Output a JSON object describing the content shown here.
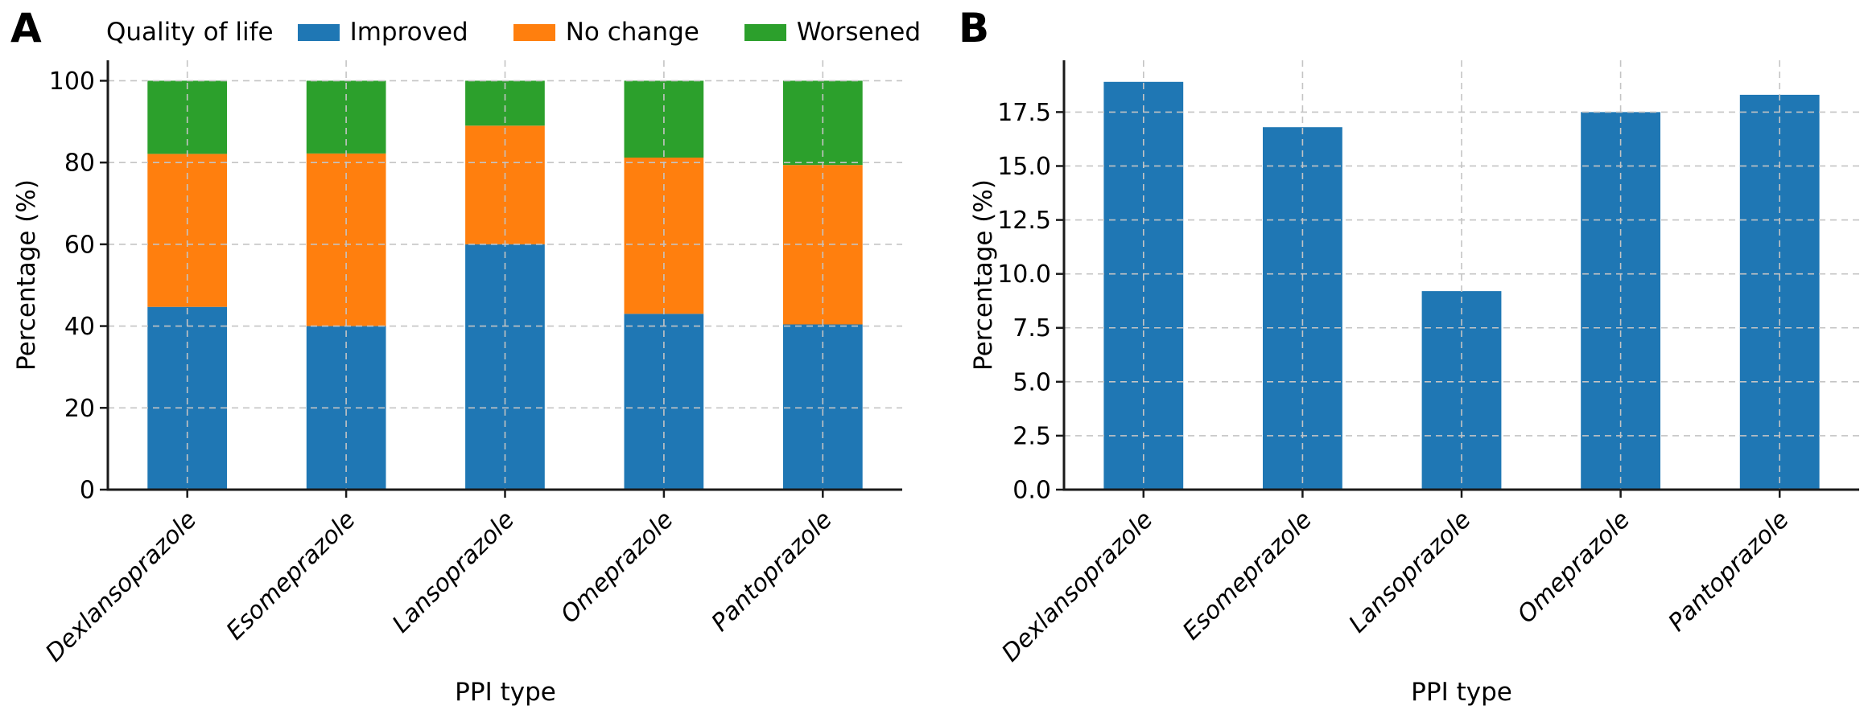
{
  "panels": {
    "a": {
      "letter": "A"
    },
    "b": {
      "letter": "B"
    }
  },
  "legend": {
    "title": "Quality of life",
    "items": [
      {
        "label": "Improved",
        "color": "#1f77b4"
      },
      {
        "label": "No change",
        "color": "#ff7f0e"
      },
      {
        "label": "Worsened",
        "color": "#2ca02c"
      }
    ]
  },
  "chart_data": [
    {
      "panel": "A",
      "type": "bar",
      "stacked": true,
      "title": "Quality of life",
      "categories": [
        "Dexlansoprazole",
        "Esomeprazole",
        "Lansoprazole",
        "Omeprazole",
        "Pantoprazole"
      ],
      "series": [
        {
          "name": "Improved",
          "color": "#1f77b4",
          "values": [
            44.7,
            40.0,
            60.0,
            43.0,
            40.4
          ]
        },
        {
          "name": "No change",
          "color": "#ff7f0e",
          "values": [
            37.4,
            42.2,
            29.0,
            38.2,
            39.0
          ]
        },
        {
          "name": "Worsened",
          "color": "#2ca02c",
          "values": [
            17.9,
            17.8,
            11.0,
            18.8,
            20.6
          ]
        }
      ],
      "xlabel": "PPI type",
      "ylabel": "Percentage (%)",
      "ylim": [
        0,
        105
      ],
      "yticks": [
        0,
        20,
        40,
        60,
        80,
        100
      ],
      "ytick_decimals": 0,
      "grid": true,
      "legend_position": "top-left"
    },
    {
      "panel": "B",
      "type": "bar",
      "stacked": false,
      "title": "",
      "categories": [
        "Dexlansoprazole",
        "Esomeprazole",
        "Lansoprazole",
        "Omeprazole",
        "Pantoprazole"
      ],
      "series": [
        {
          "name": "",
          "color": "#1f77b4",
          "values": [
            18.9,
            16.8,
            9.2,
            17.5,
            18.3
          ]
        }
      ],
      "xlabel": "PPI type",
      "ylabel": "Percentage (%)",
      "ylim": [
        0,
        19.9
      ],
      "yticks": [
        0,
        2.5,
        5,
        7.5,
        10,
        12.5,
        15,
        17.5
      ],
      "ytick_decimals": 1,
      "grid": true,
      "legend_position": "none"
    }
  ],
  "style": {
    "grid_color": "#c4c4c4",
    "axis_color": "#1a1a1a",
    "background": "#ffffff"
  }
}
